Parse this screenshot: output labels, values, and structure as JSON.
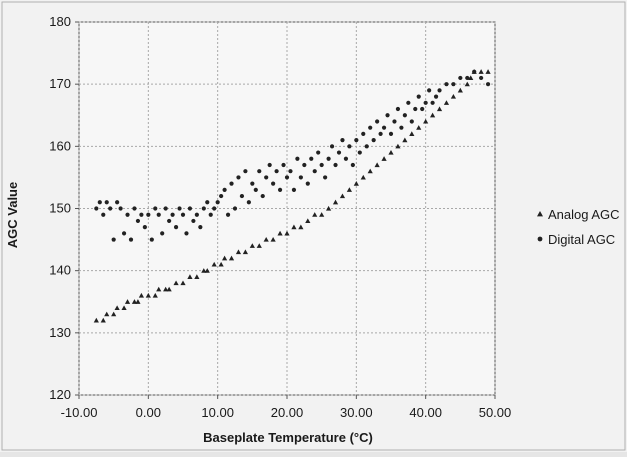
{
  "chart_data": {
    "type": "scatter",
    "xlabel": "Baseplate Temperature (°C)",
    "ylabel": "AGC Value",
    "xlim": [
      -10,
      50
    ],
    "ylim": [
      120,
      180
    ],
    "x_ticks": [
      "-10.00",
      "0.00",
      "10.00",
      "20.00",
      "30.00",
      "40.00",
      "50.00"
    ],
    "y_ticks": [
      "120",
      "130",
      "140",
      "150",
      "160",
      "170",
      "180"
    ],
    "grid": true,
    "legend_position": "right",
    "series": [
      {
        "name": "Analog AGC",
        "marker": "triangle",
        "color": "#222222",
        "points": [
          [
            -7.5,
            132
          ],
          [
            -6.5,
            132
          ],
          [
            -6.0,
            133
          ],
          [
            -5.0,
            133
          ],
          [
            -4.5,
            134
          ],
          [
            -3.5,
            134
          ],
          [
            -3.0,
            135
          ],
          [
            -2.0,
            135
          ],
          [
            -1.5,
            135
          ],
          [
            -1.0,
            136
          ],
          [
            0.0,
            136
          ],
          [
            1.0,
            136
          ],
          [
            1.5,
            137
          ],
          [
            2.5,
            137
          ],
          [
            3.0,
            137
          ],
          [
            4.0,
            138
          ],
          [
            5.0,
            138
          ],
          [
            6.0,
            139
          ],
          [
            7.0,
            139
          ],
          [
            8.0,
            140
          ],
          [
            8.5,
            140
          ],
          [
            9.5,
            141
          ],
          [
            10.5,
            141
          ],
          [
            11.0,
            142
          ],
          [
            12.0,
            142
          ],
          [
            13.0,
            143
          ],
          [
            14.0,
            143
          ],
          [
            15.0,
            144
          ],
          [
            16.0,
            144
          ],
          [
            17.0,
            145
          ],
          [
            18.0,
            145
          ],
          [
            19.0,
            146
          ],
          [
            20.0,
            146
          ],
          [
            21.0,
            147
          ],
          [
            22.0,
            147
          ],
          [
            23.0,
            148
          ],
          [
            24.0,
            149
          ],
          [
            25.0,
            149
          ],
          [
            26.0,
            150
          ],
          [
            27.0,
            151
          ],
          [
            28.0,
            152
          ],
          [
            29.0,
            153
          ],
          [
            30.0,
            154
          ],
          [
            31.0,
            155
          ],
          [
            32.0,
            156
          ],
          [
            33.0,
            157
          ],
          [
            34.0,
            158
          ],
          [
            35.0,
            159
          ],
          [
            36.0,
            160
          ],
          [
            37.0,
            161
          ],
          [
            38.0,
            162
          ],
          [
            39.0,
            163
          ],
          [
            40.0,
            164
          ],
          [
            41.0,
            165
          ],
          [
            42.0,
            166
          ],
          [
            43.0,
            167
          ],
          [
            44.0,
            168
          ],
          [
            45.0,
            169
          ],
          [
            46.0,
            170
          ],
          [
            46.5,
            171
          ],
          [
            47.0,
            172
          ],
          [
            48.0,
            172
          ],
          [
            49.0,
            172
          ]
        ]
      },
      {
        "name": "Digital AGC",
        "marker": "circle",
        "color": "#222222",
        "points": [
          [
            -7.5,
            150
          ],
          [
            -7.0,
            151
          ],
          [
            -6.5,
            149
          ],
          [
            -6.0,
            151
          ],
          [
            -5.5,
            150
          ],
          [
            -5.0,
            145
          ],
          [
            -4.5,
            151
          ],
          [
            -4.0,
            150
          ],
          [
            -3.5,
            146
          ],
          [
            -3.0,
            149
          ],
          [
            -2.5,
            145
          ],
          [
            -2.0,
            150
          ],
          [
            -1.5,
            148
          ],
          [
            -1.0,
            149
          ],
          [
            -0.5,
            147
          ],
          [
            0.0,
            149
          ],
          [
            0.5,
            145
          ],
          [
            1.0,
            150
          ],
          [
            1.5,
            149
          ],
          [
            2.0,
            146
          ],
          [
            2.5,
            150
          ],
          [
            3.0,
            148
          ],
          [
            3.5,
            149
          ],
          [
            4.0,
            147
          ],
          [
            4.5,
            150
          ],
          [
            5.0,
            149
          ],
          [
            5.5,
            146
          ],
          [
            6.0,
            150
          ],
          [
            6.5,
            148
          ],
          [
            7.0,
            149
          ],
          [
            7.5,
            147
          ],
          [
            8.0,
            150
          ],
          [
            8.5,
            151
          ],
          [
            9.0,
            149
          ],
          [
            9.5,
            150
          ],
          [
            10.0,
            151
          ],
          [
            10.5,
            152
          ],
          [
            11.0,
            153
          ],
          [
            11.5,
            149
          ],
          [
            12.0,
            154
          ],
          [
            12.5,
            150
          ],
          [
            13.0,
            155
          ],
          [
            13.5,
            152
          ],
          [
            14.0,
            156
          ],
          [
            14.5,
            151
          ],
          [
            15.0,
            154
          ],
          [
            15.5,
            153
          ],
          [
            16.0,
            156
          ],
          [
            16.5,
            152
          ],
          [
            17.0,
            155
          ],
          [
            17.5,
            157
          ],
          [
            18.0,
            154
          ],
          [
            18.5,
            156
          ],
          [
            19.0,
            153
          ],
          [
            19.5,
            157
          ],
          [
            20.0,
            155
          ],
          [
            20.5,
            156
          ],
          [
            21.0,
            153
          ],
          [
            21.5,
            158
          ],
          [
            22.0,
            155
          ],
          [
            22.5,
            157
          ],
          [
            23.0,
            154
          ],
          [
            23.5,
            158
          ],
          [
            24.0,
            156
          ],
          [
            24.5,
            159
          ],
          [
            25.0,
            157
          ],
          [
            25.5,
            155
          ],
          [
            26.0,
            158
          ],
          [
            26.5,
            160
          ],
          [
            27.0,
            157
          ],
          [
            27.5,
            159
          ],
          [
            28.0,
            161
          ],
          [
            28.5,
            158
          ],
          [
            29.0,
            160
          ],
          [
            29.5,
            157
          ],
          [
            30.0,
            161
          ],
          [
            30.5,
            159
          ],
          [
            31.0,
            162
          ],
          [
            31.5,
            160
          ],
          [
            32.0,
            163
          ],
          [
            32.5,
            161
          ],
          [
            33.0,
            164
          ],
          [
            33.5,
            162
          ],
          [
            34.0,
            163
          ],
          [
            34.5,
            165
          ],
          [
            35.0,
            162
          ],
          [
            35.5,
            164
          ],
          [
            36.0,
            166
          ],
          [
            36.5,
            163
          ],
          [
            37.0,
            165
          ],
          [
            37.5,
            167
          ],
          [
            38.0,
            164
          ],
          [
            38.5,
            166
          ],
          [
            39.0,
            168
          ],
          [
            39.5,
            166
          ],
          [
            40.0,
            167
          ],
          [
            40.5,
            169
          ],
          [
            41.0,
            167
          ],
          [
            41.5,
            168
          ],
          [
            42.0,
            169
          ],
          [
            43.0,
            170
          ],
          [
            44.0,
            170
          ],
          [
            45.0,
            171
          ],
          [
            46.0,
            171
          ],
          [
            47.0,
            172
          ],
          [
            48.0,
            171
          ],
          [
            49.0,
            170
          ]
        ]
      }
    ]
  }
}
